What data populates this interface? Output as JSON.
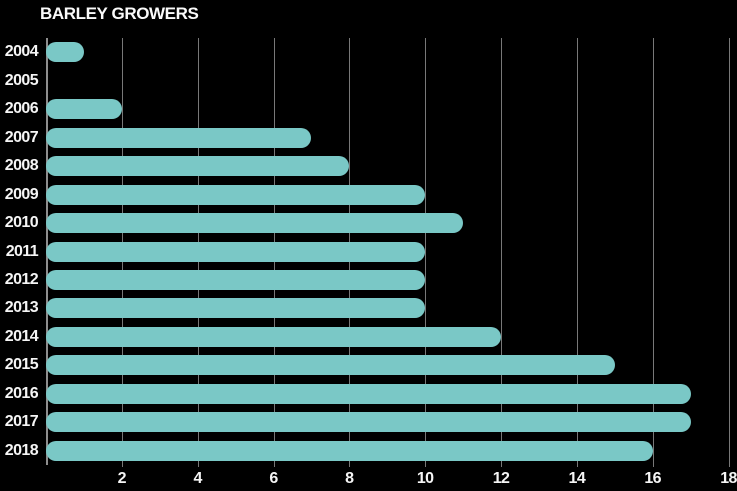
{
  "chart_data": {
    "type": "bar",
    "orientation": "horizontal",
    "title": "BARLEY GROWERS",
    "categories": [
      "2004",
      "2005",
      "2006",
      "2007",
      "2008",
      "2009",
      "2010",
      "2011",
      "2012",
      "2013",
      "2014",
      "2015",
      "2016",
      "2017",
      "2018"
    ],
    "values": [
      1,
      0,
      2,
      7,
      8,
      10,
      11,
      10,
      10,
      10,
      12,
      15,
      17,
      17,
      16
    ],
    "title_note": "",
    "xlabel": "",
    "ylabel": "",
    "xlim": [
      0,
      18
    ],
    "x_ticks": [
      2,
      4,
      6,
      8,
      10,
      12,
      14,
      16,
      18
    ],
    "grid": "vertical",
    "legend": "none",
    "colors": {
      "background": "#000000",
      "bar": "#7AC8C6",
      "gridline": "#787878",
      "axis_line": "#8E8E8E",
      "label_text": "#F5F5F5",
      "title_text": "#FAFAFA"
    }
  }
}
